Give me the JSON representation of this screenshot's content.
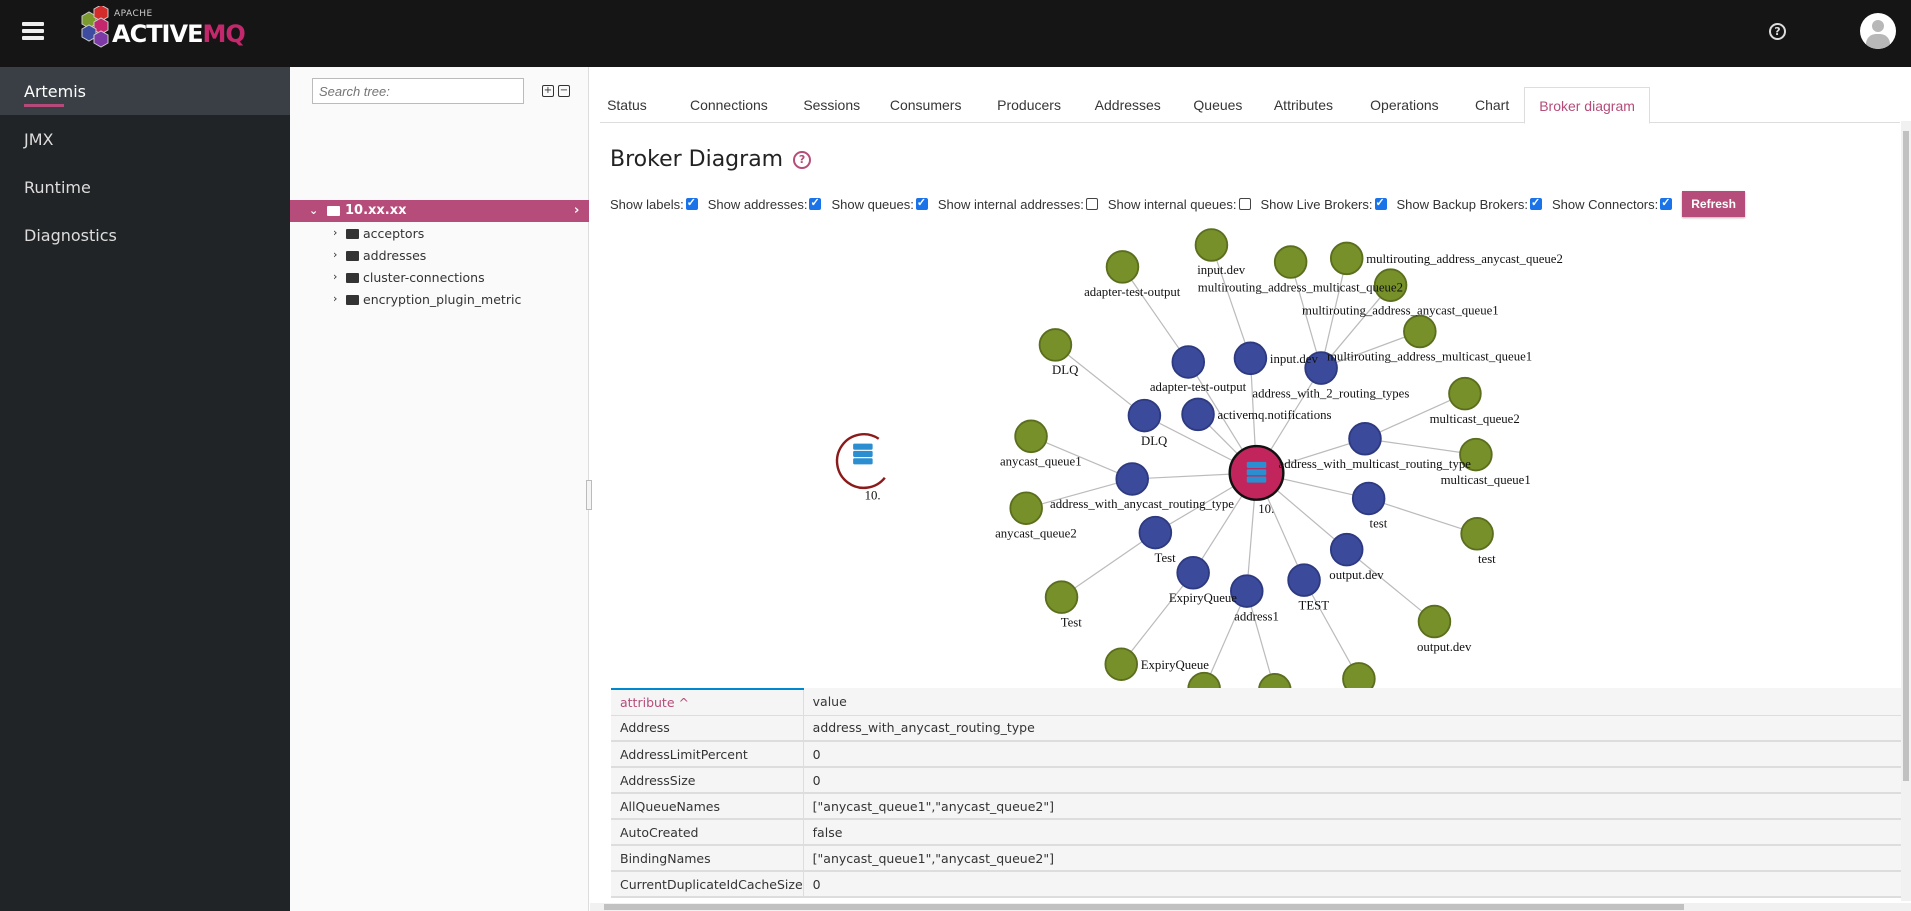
{
  "header": {
    "logo_small": "APACHE",
    "logo_main": "ACTIVE",
    "logo_accent": "MQ",
    "help_icon": "question-circle-icon",
    "avatar_icon": "user-avatar-icon",
    "help_glyph": "?"
  },
  "sidebar": {
    "items": [
      {
        "label": "Artemis",
        "active": true
      },
      {
        "label": "JMX"
      },
      {
        "label": "Runtime"
      },
      {
        "label": "Diagnostics"
      }
    ]
  },
  "tree": {
    "search_placeholder": "Search tree:",
    "expand_all": "+",
    "collapse_all": "−",
    "root": "10.xx.xx",
    "children": [
      "acceptors",
      "addresses",
      "cluster-connections",
      "encryption_plugin_metric"
    ]
  },
  "tabs": [
    "Status",
    "Connections",
    "Sessions",
    "Consumers",
    "Producers",
    "Addresses",
    "Queues",
    "Attributes",
    "Operations",
    "Chart",
    "Broker diagram"
  ],
  "active_tab": "Broker diagram",
  "page": {
    "title": "Broker Diagram",
    "help_glyph": "?"
  },
  "options": [
    {
      "label": "Show labels:",
      "checked": true
    },
    {
      "label": "Show addresses:",
      "checked": true
    },
    {
      "label": "Show queues:",
      "checked": true
    },
    {
      "label": "Show internal addresses:",
      "checked": false
    },
    {
      "label": "Show internal queues:",
      "checked": false
    },
    {
      "label": "Show Live Brokers:",
      "checked": true
    },
    {
      "label": "Show Backup Brokers:",
      "checked": true
    },
    {
      "label": "Show Connectors:",
      "checked": true
    }
  ],
  "refresh_label": "Refresh",
  "colors": {
    "accent": "#b54c79",
    "broker": "#c2255c",
    "address": "#3c4a9c",
    "queue": "#77902a",
    "backup_ring": "#8b1a1a"
  },
  "diagram": {
    "brokers": [
      {
        "label": "10.",
        "kind": "live"
      },
      {
        "label": "10.",
        "kind": "other"
      }
    ],
    "addresses": [
      "adapter-test-output",
      "input.dev",
      "address_with_2_routing_types",
      "DLQ",
      "activemq.notifications",
      "address_with_multicast_routing_type",
      "address_with_anycast_routing_type",
      "test",
      "Test",
      "output.dev",
      "ExpiryQueue",
      "address1",
      "TEST"
    ],
    "queues": [
      "adapter-test-output",
      "input.dev",
      "multirouting_address_multicast_queue2",
      "multirouting_address_anycast_queue2",
      "multirouting_address_anycast_queue1",
      "multirouting_address_multicast_queue1",
      "DLQ",
      "anycast_queue1",
      "anycast_queue2",
      "multicast_queue2",
      "multicast_queue1",
      "test",
      "Test",
      "output.dev",
      "ExpiryQueue",
      "",
      "",
      ""
    ]
  },
  "table": {
    "columns": [
      "attribute ^",
      "value"
    ],
    "rows": [
      [
        "Address",
        "address_with_anycast_routing_type"
      ],
      [
        "AddressLimitPercent",
        "0"
      ],
      [
        "AddressSize",
        "0"
      ],
      [
        "AllQueueNames",
        "[\"anycast_queue1\",\"anycast_queue2\"]"
      ],
      [
        "AutoCreated",
        "false"
      ],
      [
        "BindingNames",
        "[\"anycast_queue1\",\"anycast_queue2\"]"
      ],
      [
        "CurrentDuplicateIdCacheSize",
        "0"
      ]
    ]
  }
}
